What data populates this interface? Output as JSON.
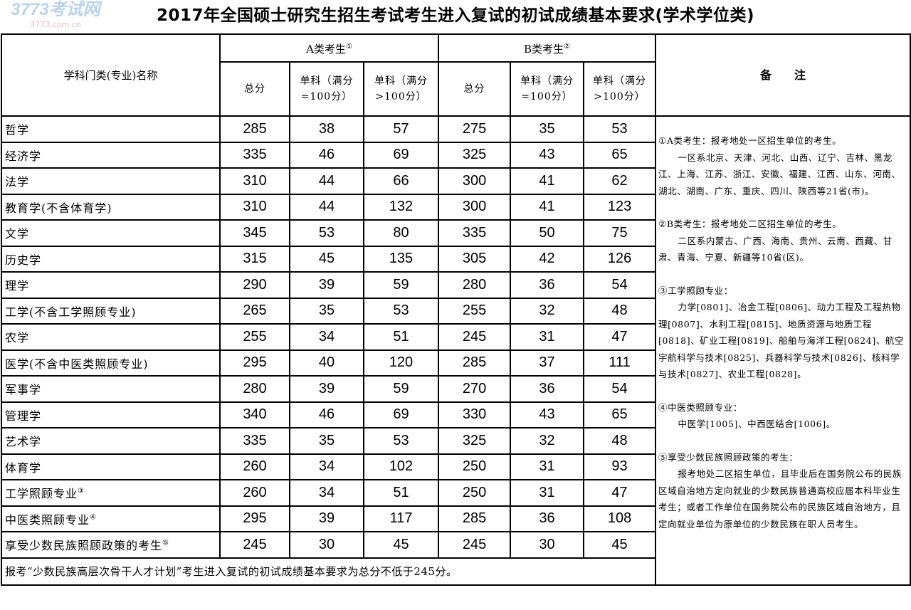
{
  "title": "2017年全国硕士研究生招生考试考生进入复试的初试成绩基本要求(学术学位类)",
  "header": {
    "subject": "学科门类(专业)名称",
    "group_a": "A类考生",
    "group_a_mark": "①",
    "group_b": "B类考生",
    "group_b_mark": "②",
    "total": "总分",
    "single_100": "单科（满分=100分）",
    "single_gt100": "单科（满分>100分）",
    "notes": "备　　注"
  },
  "rows": [
    {
      "name": "哲学",
      "mark": "",
      "a": [
        "285",
        "38",
        "57"
      ],
      "b": [
        "275",
        "35",
        "53"
      ]
    },
    {
      "name": "经济学",
      "mark": "",
      "a": [
        "335",
        "46",
        "69"
      ],
      "b": [
        "325",
        "43",
        "65"
      ]
    },
    {
      "name": "法学",
      "mark": "",
      "a": [
        "310",
        "44",
        "66"
      ],
      "b": [
        "300",
        "41",
        "62"
      ]
    },
    {
      "name": "教育学(不含体育学)",
      "mark": "",
      "a": [
        "310",
        "44",
        "132"
      ],
      "b": [
        "300",
        "41",
        "123"
      ]
    },
    {
      "name": "文学",
      "mark": "",
      "a": [
        "345",
        "53",
        "80"
      ],
      "b": [
        "335",
        "50",
        "75"
      ]
    },
    {
      "name": "历史学",
      "mark": "",
      "a": [
        "315",
        "45",
        "135"
      ],
      "b": [
        "305",
        "42",
        "126"
      ]
    },
    {
      "name": "理学",
      "mark": "",
      "a": [
        "290",
        "39",
        "59"
      ],
      "b": [
        "280",
        "36",
        "54"
      ]
    },
    {
      "name": "工学(不含工学照顾专业)",
      "mark": "",
      "a": [
        "265",
        "35",
        "53"
      ],
      "b": [
        "255",
        "32",
        "48"
      ]
    },
    {
      "name": "农学",
      "mark": "",
      "a": [
        "255",
        "34",
        "51"
      ],
      "b": [
        "245",
        "31",
        "47"
      ]
    },
    {
      "name": "医学(不含中医类照顾专业)",
      "mark": "",
      "a": [
        "295",
        "40",
        "120"
      ],
      "b": [
        "285",
        "37",
        "111"
      ]
    },
    {
      "name": "军事学",
      "mark": "",
      "a": [
        "280",
        "39",
        "59"
      ],
      "b": [
        "270",
        "36",
        "54"
      ]
    },
    {
      "name": "管理学",
      "mark": "",
      "a": [
        "340",
        "46",
        "69"
      ],
      "b": [
        "330",
        "43",
        "65"
      ]
    },
    {
      "name": "艺术学",
      "mark": "",
      "a": [
        "335",
        "35",
        "53"
      ],
      "b": [
        "325",
        "32",
        "48"
      ]
    },
    {
      "name": "体育学",
      "mark": "",
      "a": [
        "260",
        "34",
        "102"
      ],
      "b": [
        "250",
        "31",
        "93"
      ]
    },
    {
      "name": "工学照顾专业",
      "mark": "③",
      "a": [
        "260",
        "34",
        "51"
      ],
      "b": [
        "250",
        "31",
        "47"
      ]
    },
    {
      "name": "中医类照顾专业",
      "mark": "④",
      "a": [
        "295",
        "39",
        "117"
      ],
      "b": [
        "285",
        "36",
        "108"
      ]
    },
    {
      "name": "享受少数民族照顾政策的考生",
      "mark": "⑤",
      "a": [
        "245",
        "30",
        "45"
      ],
      "b": [
        "245",
        "30",
        "45"
      ]
    }
  ],
  "footer": "报考“少数民族高层次骨干人才计划”考生进入复试的初试成绩基本要求为总分不低于245分。",
  "notes": [
    {
      "head": "①A类考生：报考地处一区招生单位的考生。",
      "body": "一区系北京、天津、河北、山西、辽宁、吉林、黑龙江、上海、江苏、浙江、安徽、福建、江西、山东、河南、湖北、湖南、广东、重庆、四川、陕西等21省(市)。"
    },
    {
      "head": "②B类考生：报考地处二区招生单位的考生。",
      "body": "二区系内蒙古、广西、海南、贵州、云南、西藏、甘肃、青海、宁夏、新疆等10省(区)。"
    },
    {
      "head": "③工学照顾专业：",
      "body": "力学[0801]、冶金工程[0806]、动力工程及工程热物理[0807]、水利工程[0815]、地质资源与地质工程[0818]、矿业工程[0819]、船舶与海洋工程[0824]、航空宇航科学与技术[0825]、兵器科学与技术[0826]、核科学与技术[0827]、农业工程[0828]。"
    },
    {
      "head": "④中医类照顾专业：",
      "body": "中医学[1005]、中西医结合[1006]。"
    },
    {
      "head": "⑤享受少数民族照顾政策的考生：",
      "body": "报考地处二区招生单位，且毕业后在国务院公布的民族区域自治地方定向就业的少数民族普通高校应届本科毕业生考生；或者工作单位在国务院公布的民族区域自治地方，且定向就业单位为原单位的少数民族在职人员考生。"
    }
  ],
  "watermark": {
    "main": "3773考试网",
    "sub": "3773.com.cn"
  }
}
